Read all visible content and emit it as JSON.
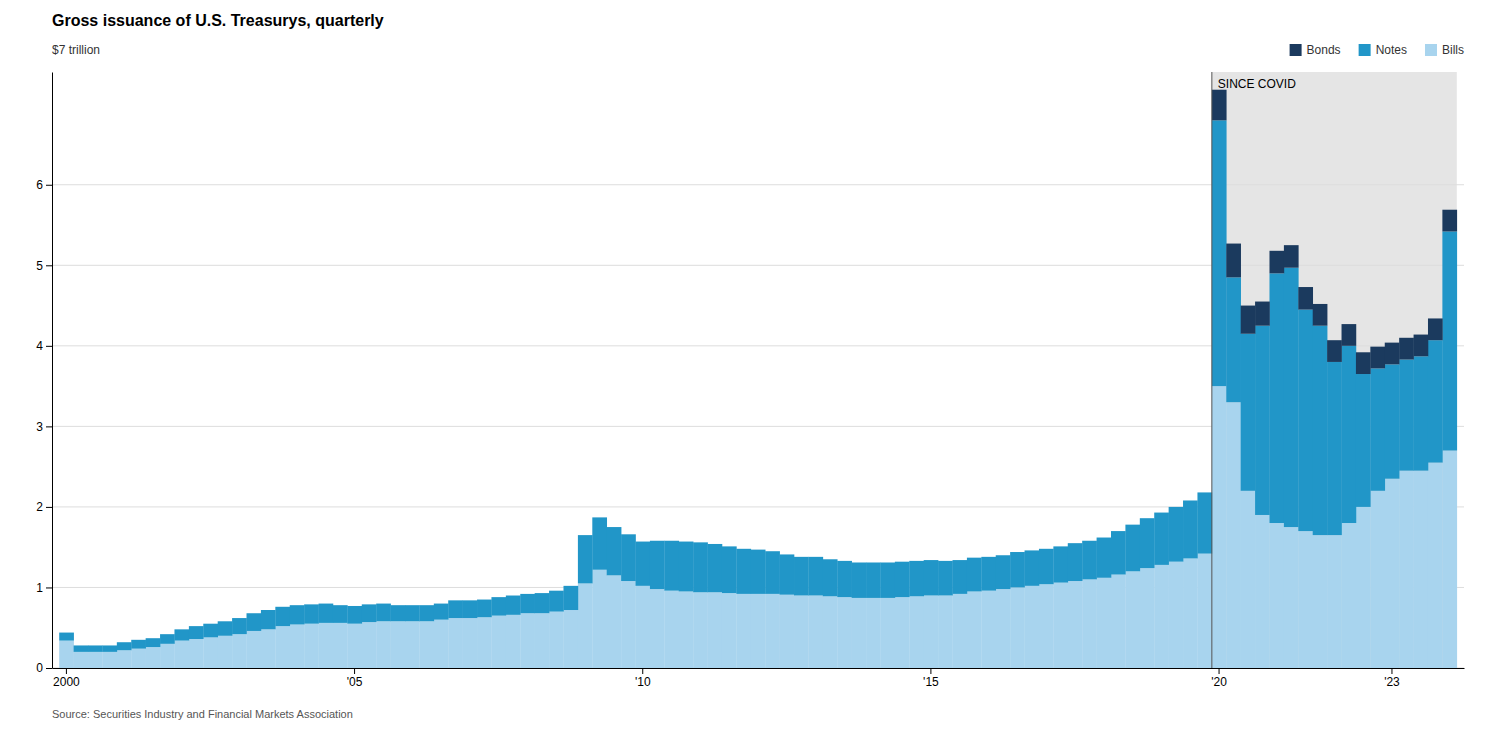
{
  "chart_data": {
    "type": "bar",
    "title": "Gross issuance of U.S. Treasurys, quarterly",
    "ylabel": "$7 trillion",
    "source": "Source: Securities Industry and Financial Markets Association",
    "stacked": true,
    "grid": true,
    "legend": "upper right",
    "annotations": [
      {
        "text": "SINCE COVID",
        "x": 80,
        "color": "#e5e5e5"
      }
    ],
    "ylim": [
      0,
      7.4
    ],
    "yticks": [
      0,
      1,
      2,
      3,
      4,
      5,
      6
    ],
    "categories": [
      "2000",
      null,
      null,
      null,
      null,
      null,
      null,
      null,
      null,
      null,
      null,
      null,
      null,
      null,
      null,
      null,
      null,
      null,
      null,
      null,
      "'05",
      null,
      null,
      null,
      null,
      null,
      null,
      null,
      null,
      null,
      null,
      null,
      null,
      null,
      null,
      null,
      null,
      null,
      null,
      null,
      "'10",
      null,
      null,
      null,
      null,
      null,
      null,
      null,
      null,
      null,
      null,
      null,
      null,
      null,
      null,
      null,
      null,
      null,
      null,
      null,
      "'15",
      null,
      null,
      null,
      null,
      null,
      null,
      null,
      null,
      null,
      null,
      null,
      null,
      null,
      null,
      null,
      null,
      null,
      null,
      null,
      "'20",
      null,
      null,
      null,
      null,
      null,
      null,
      null,
      null,
      null,
      null,
      null,
      "'23",
      null,
      null,
      null,
      null
    ],
    "series": [
      {
        "name": "Bills",
        "color": "#a8d4ee",
        "values": [
          0.34,
          0.2,
          0.2,
          0.2,
          0.22,
          0.24,
          0.26,
          0.3,
          0.34,
          0.36,
          0.38,
          0.4,
          0.42,
          0.46,
          0.48,
          0.52,
          0.54,
          0.55,
          0.56,
          0.56,
          0.55,
          0.57,
          0.58,
          0.58,
          0.58,
          0.58,
          0.6,
          0.62,
          0.62,
          0.63,
          0.65,
          0.66,
          0.68,
          0.68,
          0.7,
          0.72,
          1.05,
          1.22,
          1.15,
          1.08,
          1.02,
          0.98,
          0.96,
          0.95,
          0.94,
          0.94,
          0.93,
          0.92,
          0.92,
          0.92,
          0.91,
          0.9,
          0.9,
          0.89,
          0.88,
          0.87,
          0.87,
          0.87,
          0.88,
          0.89,
          0.9,
          0.9,
          0.92,
          0.95,
          0.96,
          0.98,
          1.0,
          1.02,
          1.04,
          1.06,
          1.08,
          1.1,
          1.12,
          1.16,
          1.2,
          1.24,
          1.28,
          1.32,
          1.36,
          1.42,
          3.5,
          3.3,
          2.2,
          1.9,
          1.8,
          1.75,
          1.7,
          1.65,
          1.65,
          1.8,
          2.0,
          2.2,
          2.35,
          2.45,
          2.45,
          2.55,
          2.7
        ]
      },
      {
        "name": "Notes",
        "color": "#2196c8",
        "values": [
          0.1,
          0.08,
          0.08,
          0.08,
          0.1,
          0.11,
          0.11,
          0.12,
          0.14,
          0.16,
          0.17,
          0.18,
          0.2,
          0.22,
          0.24,
          0.24,
          0.24,
          0.24,
          0.24,
          0.22,
          0.22,
          0.22,
          0.22,
          0.2,
          0.2,
          0.2,
          0.2,
          0.22,
          0.22,
          0.22,
          0.23,
          0.24,
          0.24,
          0.25,
          0.26,
          0.3,
          0.6,
          0.65,
          0.6,
          0.58,
          0.55,
          0.6,
          0.62,
          0.62,
          0.62,
          0.6,
          0.58,
          0.56,
          0.55,
          0.53,
          0.5,
          0.48,
          0.48,
          0.46,
          0.45,
          0.44,
          0.44,
          0.44,
          0.44,
          0.44,
          0.44,
          0.43,
          0.42,
          0.42,
          0.42,
          0.42,
          0.44,
          0.44,
          0.44,
          0.45,
          0.47,
          0.48,
          0.5,
          0.54,
          0.58,
          0.62,
          0.65,
          0.68,
          0.72,
          0.76,
          3.3,
          1.55,
          1.95,
          2.35,
          3.1,
          3.22,
          2.75,
          2.6,
          2.15,
          2.2,
          1.65,
          1.52,
          1.42,
          1.38,
          1.42,
          1.52,
          2.72
        ]
      },
      {
        "name": "Bonds",
        "color": "#1b3a5e",
        "values": [
          0.0,
          0.0,
          0.0,
          0.0,
          0.0,
          0.0,
          0.0,
          0.0,
          0.0,
          0.0,
          0.0,
          0.0,
          0.0,
          0.0,
          0.0,
          0.0,
          0.0,
          0.0,
          0.0,
          0.0,
          0.0,
          0.0,
          0.0,
          0.0,
          0.0,
          0.0,
          0.0,
          0.0,
          0.0,
          0.0,
          0.0,
          0.0,
          0.0,
          0.0,
          0.0,
          0.0,
          0.0,
          0.0,
          0.0,
          0.0,
          0.0,
          0.0,
          0.0,
          0.0,
          0.0,
          0.0,
          0.0,
          0.0,
          0.0,
          0.0,
          0.0,
          0.0,
          0.0,
          0.0,
          0.0,
          0.0,
          0.0,
          0.0,
          0.0,
          0.0,
          0.0,
          0.0,
          0.0,
          0.0,
          0.0,
          0.0,
          0.0,
          0.0,
          0.0,
          0.0,
          0.0,
          0.0,
          0.0,
          0.0,
          0.0,
          0.0,
          0.0,
          0.0,
          0.0,
          0.0,
          0.38,
          0.42,
          0.35,
          0.3,
          0.28,
          0.28,
          0.28,
          0.27,
          0.27,
          0.27,
          0.27,
          0.27,
          0.27,
          0.27,
          0.27,
          0.27,
          0.27
        ]
      }
    ]
  }
}
